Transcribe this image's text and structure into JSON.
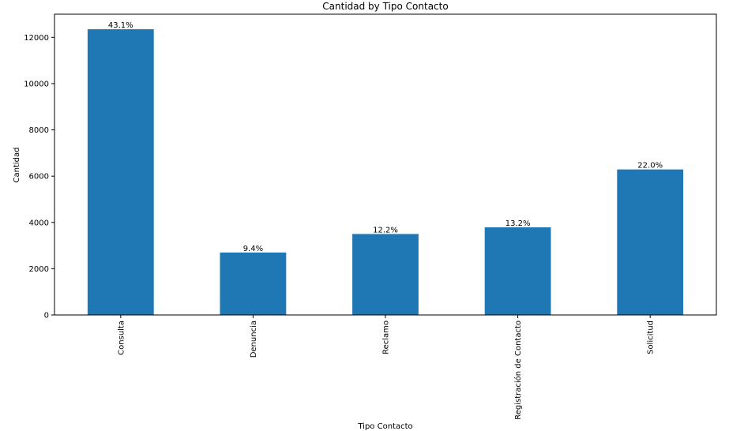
{
  "chart_data": {
    "type": "bar",
    "title": "Cantidad by Tipo Contacto",
    "xlabel": "Tipo Contacto",
    "ylabel": "Cantidad",
    "categories": [
      "Consulta",
      "Denuncia",
      "Reclamo",
      "Registración de Contacto",
      "Solicitud"
    ],
    "values": [
      12350,
      2700,
      3500,
      3790,
      6290
    ],
    "data_labels": [
      "43.1%",
      "9.4%",
      "12.2%",
      "13.2%",
      "22.0%"
    ],
    "ylim": [
      0,
      13000
    ],
    "yticks": [
      0,
      2000,
      4000,
      6000,
      8000,
      10000,
      12000
    ],
    "ytick_labels": [
      "0",
      "2000",
      "4000",
      "6000",
      "8000",
      "10000",
      "12000"
    ],
    "grid": false,
    "legend": false,
    "colors": {
      "bar": "#1f77b4",
      "axis": "#000000",
      "background": "#ffffff"
    }
  }
}
